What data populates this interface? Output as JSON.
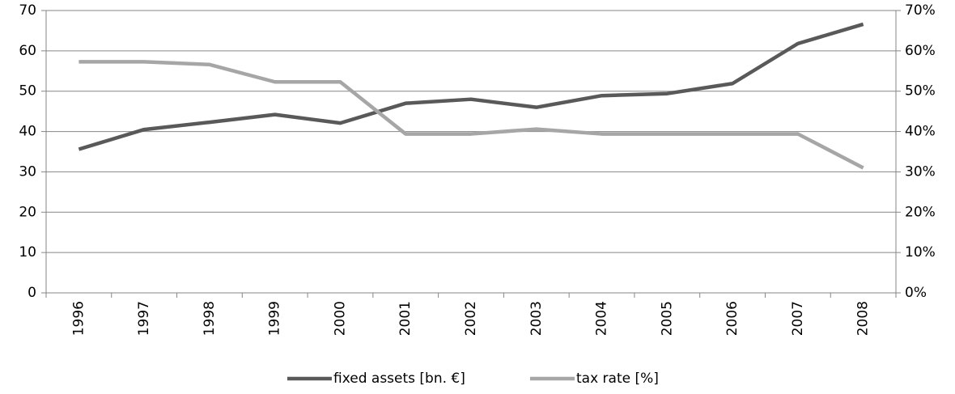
{
  "chart_data": {
    "type": "line",
    "categories": [
      "1996",
      "1997",
      "1998",
      "1999",
      "2000",
      "2001",
      "2002",
      "2003",
      "2004",
      "2005",
      "2006",
      "2007",
      "2008"
    ],
    "series": [
      {
        "name": "fixed assets [bn. €]",
        "color": "#595959",
        "values": [
          35.6,
          40.5,
          42.3,
          44.2,
          42.1,
          47.0,
          48.0,
          46.0,
          48.9,
          49.4,
          51.9,
          61.8,
          66.6
        ]
      },
      {
        "name": "tax rate [%]",
        "color": "#a6a6a6",
        "axis": "y2",
        "values": [
          57.3,
          57.3,
          56.6,
          52.3,
          52.3,
          39.4,
          39.4,
          40.6,
          39.4,
          39.4,
          39.4,
          39.4,
          31.0
        ]
      }
    ],
    "ylim": [
      0,
      70
    ],
    "yticks": [
      0,
      10,
      20,
      30,
      40,
      50,
      60,
      70
    ],
    "y2lim": [
      0,
      70
    ],
    "y2ticks": [
      {
        "value": 0,
        "label": "0%"
      },
      {
        "value": 10,
        "label": "10%"
      },
      {
        "value": 20,
        "label": "20%"
      },
      {
        "value": 30,
        "label": "30%"
      },
      {
        "value": 40,
        "label": "40%"
      },
      {
        "value": 50,
        "label": "50%"
      },
      {
        "value": 60,
        "label": "60%"
      },
      {
        "value": 70,
        "label": "70%"
      }
    ],
    "grid": true,
    "legend": "bottom"
  }
}
